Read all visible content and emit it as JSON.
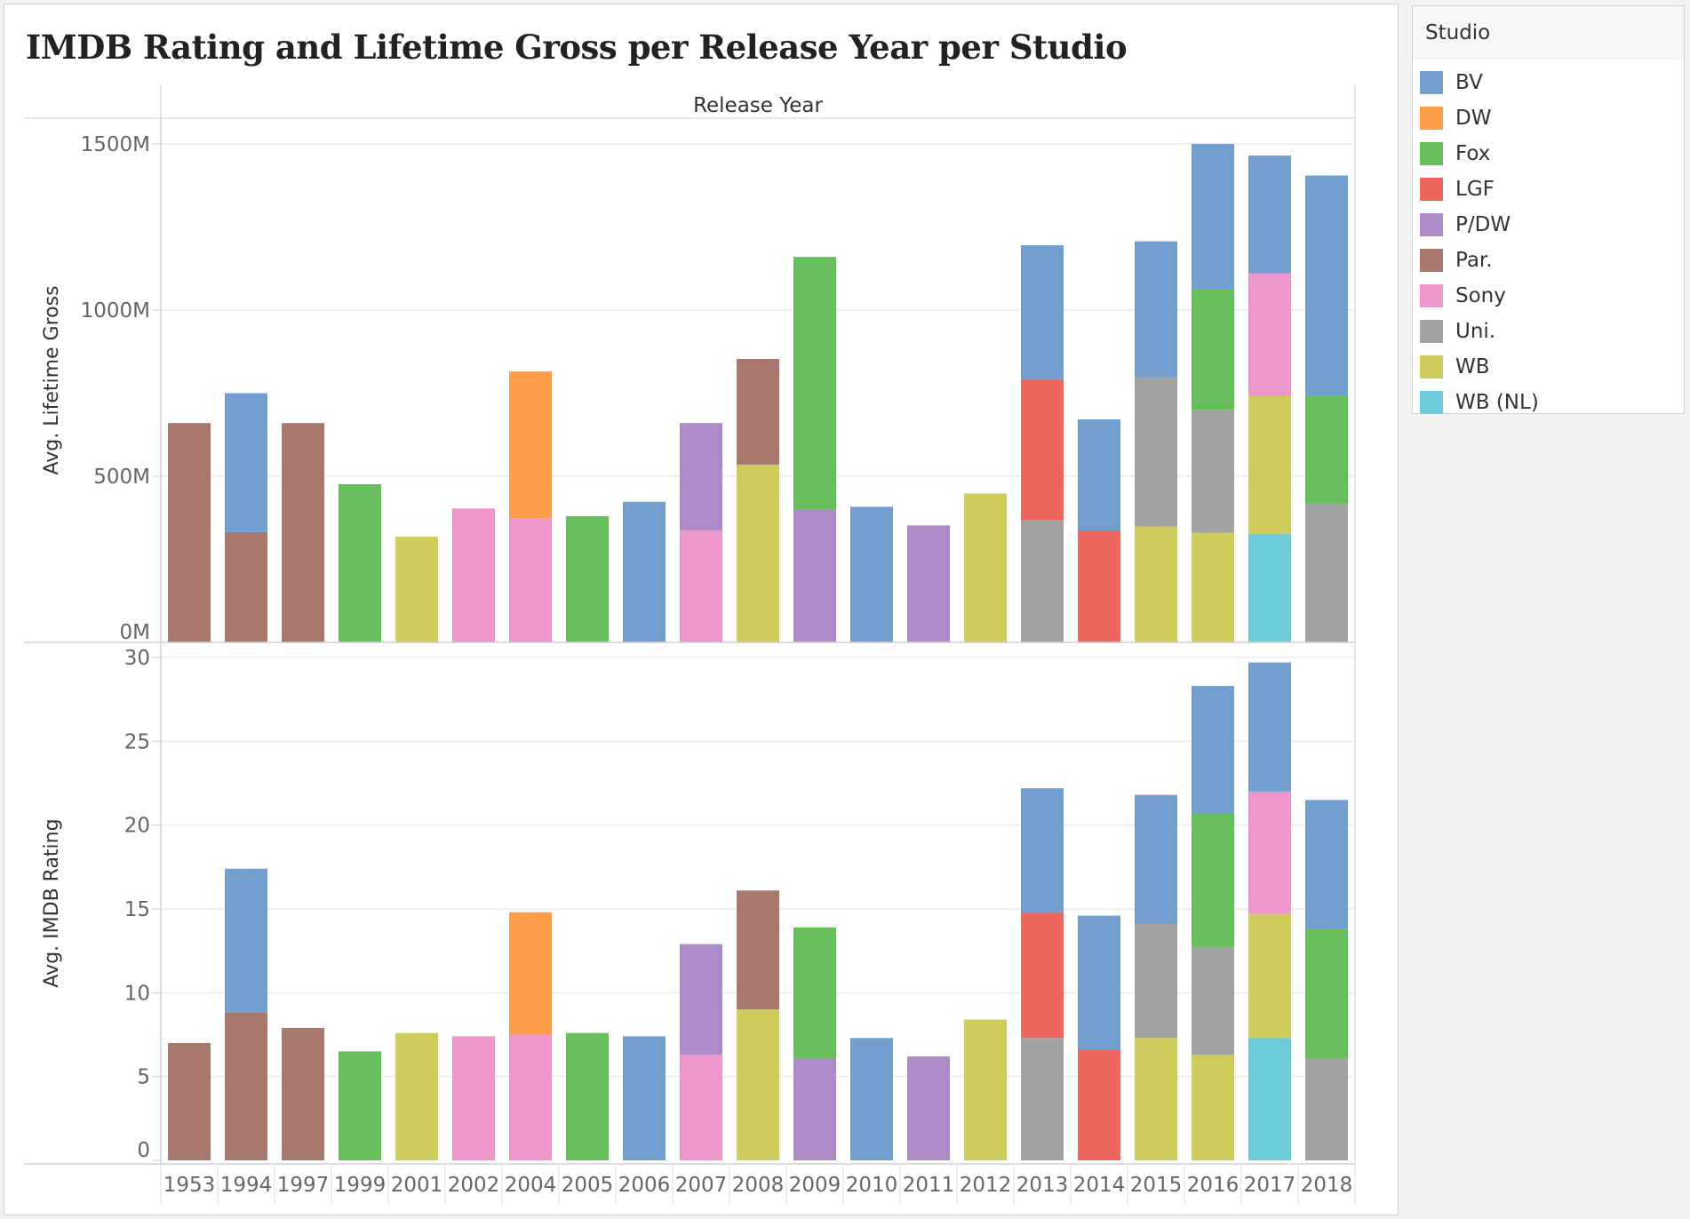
{
  "chart_data": {
    "type": "bar",
    "stacked": true,
    "title": "IMDB Rating and Lifetime Gross per Release Year per Studio",
    "column_header": "Release Year",
    "categories": [
      "1953",
      "1994",
      "1997",
      "1999",
      "2001",
      "2002",
      "2004",
      "2005",
      "2006",
      "2007",
      "2008",
      "2009",
      "2010",
      "2011",
      "2012",
      "2013",
      "2014",
      "2015",
      "2016",
      "2017",
      "2018"
    ],
    "legend": {
      "title": "Studio",
      "position": "right",
      "items": [
        {
          "name": "BV",
          "color": "#729fcf"
        },
        {
          "name": "DW",
          "color": "#fd9d4a"
        },
        {
          "name": "Fox",
          "color": "#67bf5c"
        },
        {
          "name": "LGF",
          "color": "#ed665d"
        },
        {
          "name": "P/DW",
          "color": "#ad8bc9"
        },
        {
          "name": "Par.",
          "color": "#a8786e"
        },
        {
          "name": "Sony",
          "color": "#ed97ca"
        },
        {
          "name": "Uni.",
          "color": "#a2a2a2"
        },
        {
          "name": "WB",
          "color": "#cdcc5d"
        },
        {
          "name": "WB (NL)",
          "color": "#6dccda"
        }
      ]
    },
    "panels": [
      {
        "ylabel": "Avg. Lifetime Gross",
        "ylim": [
          0,
          1500
        ],
        "yticks": [
          0,
          500,
          1000,
          1500
        ],
        "ytick_labels": [
          "0M",
          "500M",
          "1000M",
          "1500M"
        ],
        "stacks": [
          [
            {
              "studio": "Par.",
              "value": 660
            }
          ],
          [
            {
              "studio": "Par.",
              "value": 332
            },
            {
              "studio": "BV",
              "value": 418
            }
          ],
          [
            {
              "studio": "Par.",
              "value": 660
            }
          ],
          [
            {
              "studio": "Fox",
              "value": 476
            }
          ],
          [
            {
              "studio": "WB",
              "value": 318
            }
          ],
          [
            {
              "studio": "Sony",
              "value": 403
            }
          ],
          [
            {
              "studio": "Sony",
              "value": 374
            },
            {
              "studio": "DW",
              "value": 441
            }
          ],
          [
            {
              "studio": "Fox",
              "value": 380
            }
          ],
          [
            {
              "studio": "BV",
              "value": 423
            }
          ],
          [
            {
              "studio": "Sony",
              "value": 337
            },
            {
              "studio": "P/DW",
              "value": 323
            }
          ],
          [
            {
              "studio": "WB",
              "value": 535
            },
            {
              "studio": "Par.",
              "value": 318
            }
          ],
          [
            {
              "studio": "P/DW",
              "value": 400
            },
            {
              "studio": "Fox",
              "value": 760
            }
          ],
          [
            {
              "studio": "BV",
              "value": 408
            }
          ],
          [
            {
              "studio": "P/DW",
              "value": 352
            }
          ],
          [
            {
              "studio": "WB",
              "value": 448
            }
          ],
          [
            {
              "studio": "Uni.",
              "value": 368
            },
            {
              "studio": "LGF",
              "value": 424
            },
            {
              "studio": "BV",
              "value": 403
            }
          ],
          [
            {
              "studio": "LGF",
              "value": 337
            },
            {
              "studio": "BV",
              "value": 334
            }
          ],
          [
            {
              "studio": "WB",
              "value": 349
            },
            {
              "studio": "Uni.",
              "value": 449
            },
            {
              "studio": "BV",
              "value": 409
            }
          ],
          [
            {
              "studio": "WB",
              "value": 330
            },
            {
              "studio": "Uni.",
              "value": 370
            },
            {
              "studio": "Fox",
              "value": 363
            },
            {
              "studio": "BV",
              "value": 437
            }
          ],
          [
            {
              "studio": "WB (NL)",
              "value": 327
            },
            {
              "studio": "WB",
              "value": 415
            },
            {
              "studio": "Sony",
              "value": 369
            },
            {
              "studio": "BV",
              "value": 354
            }
          ],
          [
            {
              "studio": "Uni.",
              "value": 418
            },
            {
              "studio": "Fox",
              "value": 323
            },
            {
              "studio": "BV",
              "value": 664
            }
          ]
        ]
      },
      {
        "ylabel": "Avg. IMDB Rating",
        "ylim": [
          0,
          30
        ],
        "yticks": [
          0,
          5,
          10,
          15,
          20,
          25,
          30
        ],
        "ytick_labels": [
          "0",
          "5",
          "10",
          "15",
          "20",
          "25",
          "30"
        ],
        "stacks": [
          [
            {
              "studio": "Par.",
              "value": 7.0
            }
          ],
          [
            {
              "studio": "Par.",
              "value": 8.8
            },
            {
              "studio": "BV",
              "value": 8.6
            }
          ],
          [
            {
              "studio": "Par.",
              "value": 7.9
            }
          ],
          [
            {
              "studio": "Fox",
              "value": 6.5
            }
          ],
          [
            {
              "studio": "WB",
              "value": 7.6
            }
          ],
          [
            {
              "studio": "Sony",
              "value": 7.4
            }
          ],
          [
            {
              "studio": "Sony",
              "value": 7.5
            },
            {
              "studio": "DW",
              "value": 7.3
            }
          ],
          [
            {
              "studio": "Fox",
              "value": 7.6
            }
          ],
          [
            {
              "studio": "BV",
              "value": 7.4
            }
          ],
          [
            {
              "studio": "Sony",
              "value": 6.3
            },
            {
              "studio": "P/DW",
              "value": 6.6
            }
          ],
          [
            {
              "studio": "WB",
              "value": 9.0
            },
            {
              "studio": "Par.",
              "value": 7.1
            }
          ],
          [
            {
              "studio": "P/DW",
              "value": 6.1
            },
            {
              "studio": "Fox",
              "value": 7.8
            }
          ],
          [
            {
              "studio": "BV",
              "value": 7.3
            }
          ],
          [
            {
              "studio": "P/DW",
              "value": 6.2
            }
          ],
          [
            {
              "studio": "WB",
              "value": 8.4
            }
          ],
          [
            {
              "studio": "Uni.",
              "value": 7.3
            },
            {
              "studio": "LGF",
              "value": 7.5
            },
            {
              "studio": "BV",
              "value": 7.4
            }
          ],
          [
            {
              "studio": "LGF",
              "value": 6.6
            },
            {
              "studio": "BV",
              "value": 8.0
            }
          ],
          [
            {
              "studio": "WB",
              "value": 7.3
            },
            {
              "studio": "Uni.",
              "value": 6.8
            },
            {
              "studio": "BV",
              "value": 7.7
            }
          ],
          [
            {
              "studio": "WB",
              "value": 6.3
            },
            {
              "studio": "Uni.",
              "value": 6.4
            },
            {
              "studio": "Fox",
              "value": 8.0
            },
            {
              "studio": "BV",
              "value": 7.6
            }
          ],
          [
            {
              "studio": "WB (NL)",
              "value": 7.3
            },
            {
              "studio": "WB",
              "value": 7.4
            },
            {
              "studio": "Sony",
              "value": 7.3
            },
            {
              "studio": "BV",
              "value": 7.7
            }
          ],
          [
            {
              "studio": "Uni.",
              "value": 6.1
            },
            {
              "studio": "Fox",
              "value": 7.7
            },
            {
              "studio": "BV",
              "value": 7.7
            }
          ]
        ]
      }
    ],
    "grid": true
  }
}
